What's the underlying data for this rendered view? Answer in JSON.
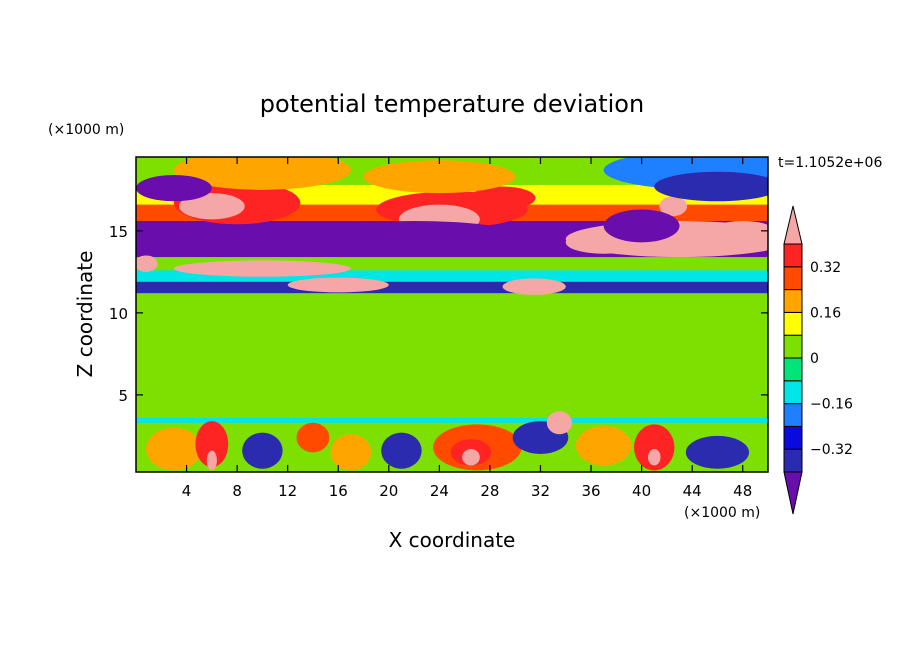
{
  "chart_data": {
    "type": "heatmap",
    "title": "potential temperature deviation",
    "xlabel": "X coordinate",
    "ylabel": "Z coordinate",
    "x_unit": "(×1000 m)",
    "y_unit": "(×1000 m)",
    "time_label": "t=1.1052e+06",
    "xlim": [
      0,
      50
    ],
    "ylim": [
      0.3,
      19.5
    ],
    "x_ticks": [
      4,
      8,
      12,
      16,
      20,
      24,
      28,
      32,
      36,
      40,
      44,
      48
    ],
    "y_ticks": [
      5,
      10,
      15
    ],
    "colorbar": {
      "levels": [
        -0.4,
        -0.32,
        -0.24,
        -0.16,
        -0.08,
        0,
        0.08,
        0.16,
        0.24,
        0.32,
        0.4
      ],
      "tick_labels": [
        {
          "value": 0.32,
          "label": "0.32"
        },
        {
          "value": 0.16,
          "label": "0.16"
        },
        {
          "value": 0,
          "label": "0"
        },
        {
          "value": -0.16,
          "label": "−0.16"
        },
        {
          "value": -0.32,
          "label": "−0.32"
        }
      ],
      "colors": [
        "#6a0dad",
        "#2b2bb0",
        "#0a0ae0",
        "#1e7fff",
        "#00e5e5",
        "#00e47a",
        "#7ee000",
        "#ffff00",
        "#ffa500",
        "#ff4a00",
        "#ff2424",
        "#f5a7a7"
      ],
      "extend": "both"
    },
    "background_value": 0.02,
    "bands": [
      {
        "z": [
          0.3,
          3.6
        ],
        "value": 0.05
      },
      {
        "z": [
          3.3,
          3.6
        ],
        "value": -0.1
      },
      {
        "z": [
          3.6,
          11.2
        ],
        "value": 0.02
      },
      {
        "z": [
          11.2,
          11.9
        ],
        "value": -0.36
      },
      {
        "z": [
          11.9,
          12.6
        ],
        "value": -0.1
      },
      {
        "z": [
          12.6,
          13.4
        ],
        "value": 0.05
      },
      {
        "z": [
          13.4,
          15.6
        ],
        "value": -0.45
      },
      {
        "z": [
          15.6,
          16.6
        ],
        "value": 0.3
      },
      {
        "z": [
          16.6,
          17.8
        ],
        "value": 0.08
      },
      {
        "z": [
          17.8,
          19.5
        ],
        "value": 0.02
      }
    ],
    "features": [
      {
        "x": 6,
        "z": 6.5,
        "rx": 6,
        "rz": 2.5,
        "value": 0.07
      },
      {
        "x": 26,
        "z": 7,
        "rx": 6,
        "rz": 3,
        "value": 0.07
      },
      {
        "x": 33,
        "z": 8,
        "rx": 4,
        "rz": 2.5,
        "value": 0.07
      },
      {
        "x": 44,
        "z": 6.5,
        "rx": 4,
        "rz": 2,
        "value": 0.07
      },
      {
        "x": 3,
        "z": 1.7,
        "rx": 2.2,
        "rz": 1.3,
        "value": 0.2
      },
      {
        "x": 6,
        "z": 2,
        "rx": 1.3,
        "rz": 1.4,
        "value": 0.32
      },
      {
        "x": 6,
        "z": 1,
        "rx": 0.4,
        "rz": 0.6,
        "value": 0.45
      },
      {
        "x": 10,
        "z": 1.6,
        "rx": 1.6,
        "rz": 1.1,
        "value": -0.36
      },
      {
        "x": 14,
        "z": 2.4,
        "rx": 1.3,
        "rz": 0.9,
        "value": 0.3
      },
      {
        "x": 17,
        "z": 1.5,
        "rx": 1.6,
        "rz": 1.1,
        "value": 0.16
      },
      {
        "x": 21,
        "z": 1.6,
        "rx": 1.6,
        "rz": 1.1,
        "value": -0.36
      },
      {
        "x": 27,
        "z": 1.8,
        "rx": 3.5,
        "rz": 1.4,
        "value": 0.24
      },
      {
        "x": 26.5,
        "z": 1.5,
        "rx": 1.6,
        "rz": 0.8,
        "value": 0.34
      },
      {
        "x": 26.5,
        "z": 1.2,
        "rx": 0.7,
        "rz": 0.5,
        "value": 0.45
      },
      {
        "x": 32,
        "z": 2.4,
        "rx": 2.2,
        "rz": 1.0,
        "value": -0.36
      },
      {
        "x": 33.5,
        "z": 3.3,
        "rx": 1.0,
        "rz": 0.7,
        "value": 0.45
      },
      {
        "x": 37,
        "z": 1.9,
        "rx": 2.2,
        "rz": 1.2,
        "value": 0.2
      },
      {
        "x": 41,
        "z": 1.8,
        "rx": 1.6,
        "rz": 1.4,
        "value": 0.32
      },
      {
        "x": 41,
        "z": 1.2,
        "rx": 0.5,
        "rz": 0.5,
        "value": 0.45
      },
      {
        "x": 46,
        "z": 1.5,
        "rx": 2.5,
        "rz": 1.0,
        "value": -0.36
      },
      {
        "x": 10,
        "z": 12.7,
        "rx": 7,
        "rz": 0.5,
        "value": 0.45
      },
      {
        "x": 16,
        "z": 11.7,
        "rx": 4,
        "rz": 0.45,
        "value": 0.45
      },
      {
        "x": 31.5,
        "z": 11.6,
        "rx": 2.5,
        "rz": 0.5,
        "value": 0.45
      },
      {
        "x": 0.8,
        "z": 13.0,
        "rx": 0.9,
        "rz": 0.5,
        "value": 0.45
      },
      {
        "x": 43,
        "z": 14.5,
        "rx": 9,
        "rz": 1.1,
        "value": 0.45
      },
      {
        "x": 37,
        "z": 14.3,
        "rx": 3,
        "rz": 0.7,
        "value": 0.45
      },
      {
        "x": 48,
        "z": 15.0,
        "rx": 2.5,
        "rz": 0.6,
        "value": 0.45
      },
      {
        "x": 8,
        "z": 16.7,
        "rx": 5,
        "rz": 1.3,
        "value": 0.32
      },
      {
        "x": 6,
        "z": 16.5,
        "rx": 2.6,
        "rz": 0.8,
        "value": 0.45
      },
      {
        "x": 25,
        "z": 16.3,
        "rx": 6,
        "rz": 1.1,
        "value": 0.32
      },
      {
        "x": 24,
        "z": 15.7,
        "rx": 3.2,
        "rz": 0.9,
        "value": 0.45
      },
      {
        "x": 29,
        "z": 17.0,
        "rx": 2.6,
        "rz": 0.7,
        "value": 0.32
      },
      {
        "x": 42.5,
        "z": 16.5,
        "rx": 1.1,
        "rz": 0.6,
        "value": 0.45
      },
      {
        "x": 10,
        "z": 18.7,
        "rx": 7,
        "rz": 1.2,
        "value": 0.2
      },
      {
        "x": 24,
        "z": 18.3,
        "rx": 6,
        "rz": 1.0,
        "value": 0.2
      },
      {
        "x": 45,
        "z": 18.7,
        "rx": 8,
        "rz": 1.2,
        "value": -0.2
      },
      {
        "x": 46,
        "z": 17.7,
        "rx": 5,
        "rz": 0.9,
        "value": -0.36
      },
      {
        "x": 3,
        "z": 17.6,
        "rx": 3,
        "rz": 0.8,
        "value": -0.45
      },
      {
        "x": 22,
        "z": 14.8,
        "rx": 8,
        "rz": 0.8,
        "value": -0.45
      },
      {
        "x": 40,
        "z": 15.3,
        "rx": 3,
        "rz": 1.0,
        "value": -0.45
      }
    ]
  }
}
